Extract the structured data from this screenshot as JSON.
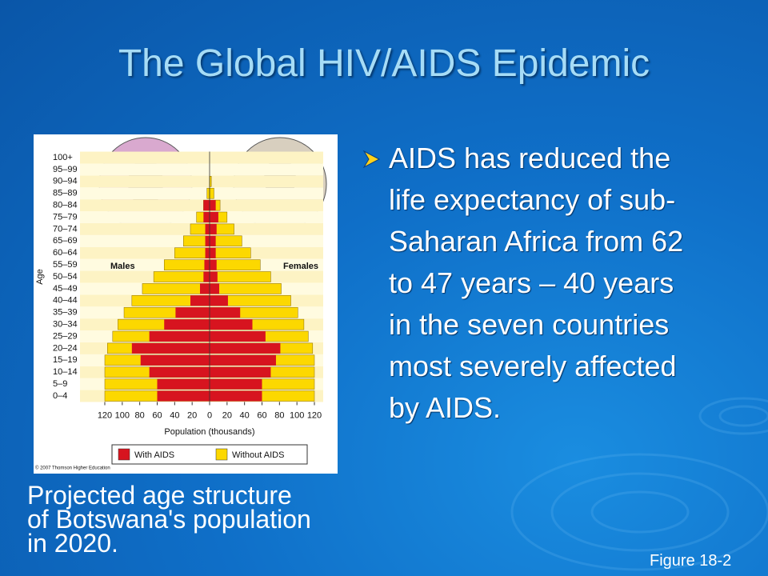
{
  "slide": {
    "title": "The Global HIV/AIDS Epidemic",
    "bullet_lines": [
      "AIDS has reduced the",
      "life expectancy of sub-",
      "Saharan Africa from 62",
      "to 47 years – 40 years",
      "in the seven countries",
      "most severely affected",
      "by AIDS."
    ],
    "caption_lines": [
      "Projected age structure",
      "of Botswana's population",
      "in 2020."
    ],
    "figure": "Figure 18-2"
  },
  "chart_data": {
    "type": "pyramid",
    "y_label": "Age",
    "x_label": "Population (thousands)",
    "left_label": "Males",
    "right_label": "Females",
    "credit": "© 2007 Thomson Higher Education",
    "categories": [
      "0–4",
      "5–9",
      "10–14",
      "15–19",
      "20–24",
      "25–29",
      "30–34",
      "35–39",
      "40–44",
      "45–49",
      "50–54",
      "55–59",
      "60–64",
      "65–69",
      "70–74",
      "75–79",
      "80–84",
      "85–89",
      "90–94",
      "95–99",
      "100+"
    ],
    "series": [
      {
        "name": "Without AIDS",
        "color": "#fcd800",
        "males": [
          120,
          120,
          120,
          120,
          117,
          111,
          105,
          98,
          89,
          77,
          64,
          52,
          40,
          30,
          22,
          15,
          7,
          3,
          0,
          0,
          0
        ],
        "females": [
          120,
          120,
          120,
          120,
          118,
          113,
          108,
          101,
          93,
          82,
          70,
          58,
          47,
          37,
          28,
          20,
          12,
          5,
          2,
          0,
          0
        ]
      },
      {
        "name": "With AIDS",
        "color": "#d7141f",
        "males": [
          60,
          60,
          69,
          79,
          89,
          69,
          52,
          39,
          22,
          11,
          7,
          6,
          5,
          5,
          5,
          7,
          7,
          0,
          0,
          0,
          0
        ],
        "females": [
          60,
          60,
          70,
          76,
          81,
          64,
          49,
          35,
          21,
          11,
          9,
          8,
          7,
          7,
          8,
          10,
          7,
          0,
          0,
          0,
          0
        ]
      }
    ],
    "xlim": [
      0,
      120
    ],
    "xticks": [
      0,
      20,
      40,
      60,
      80,
      100,
      120
    ]
  }
}
